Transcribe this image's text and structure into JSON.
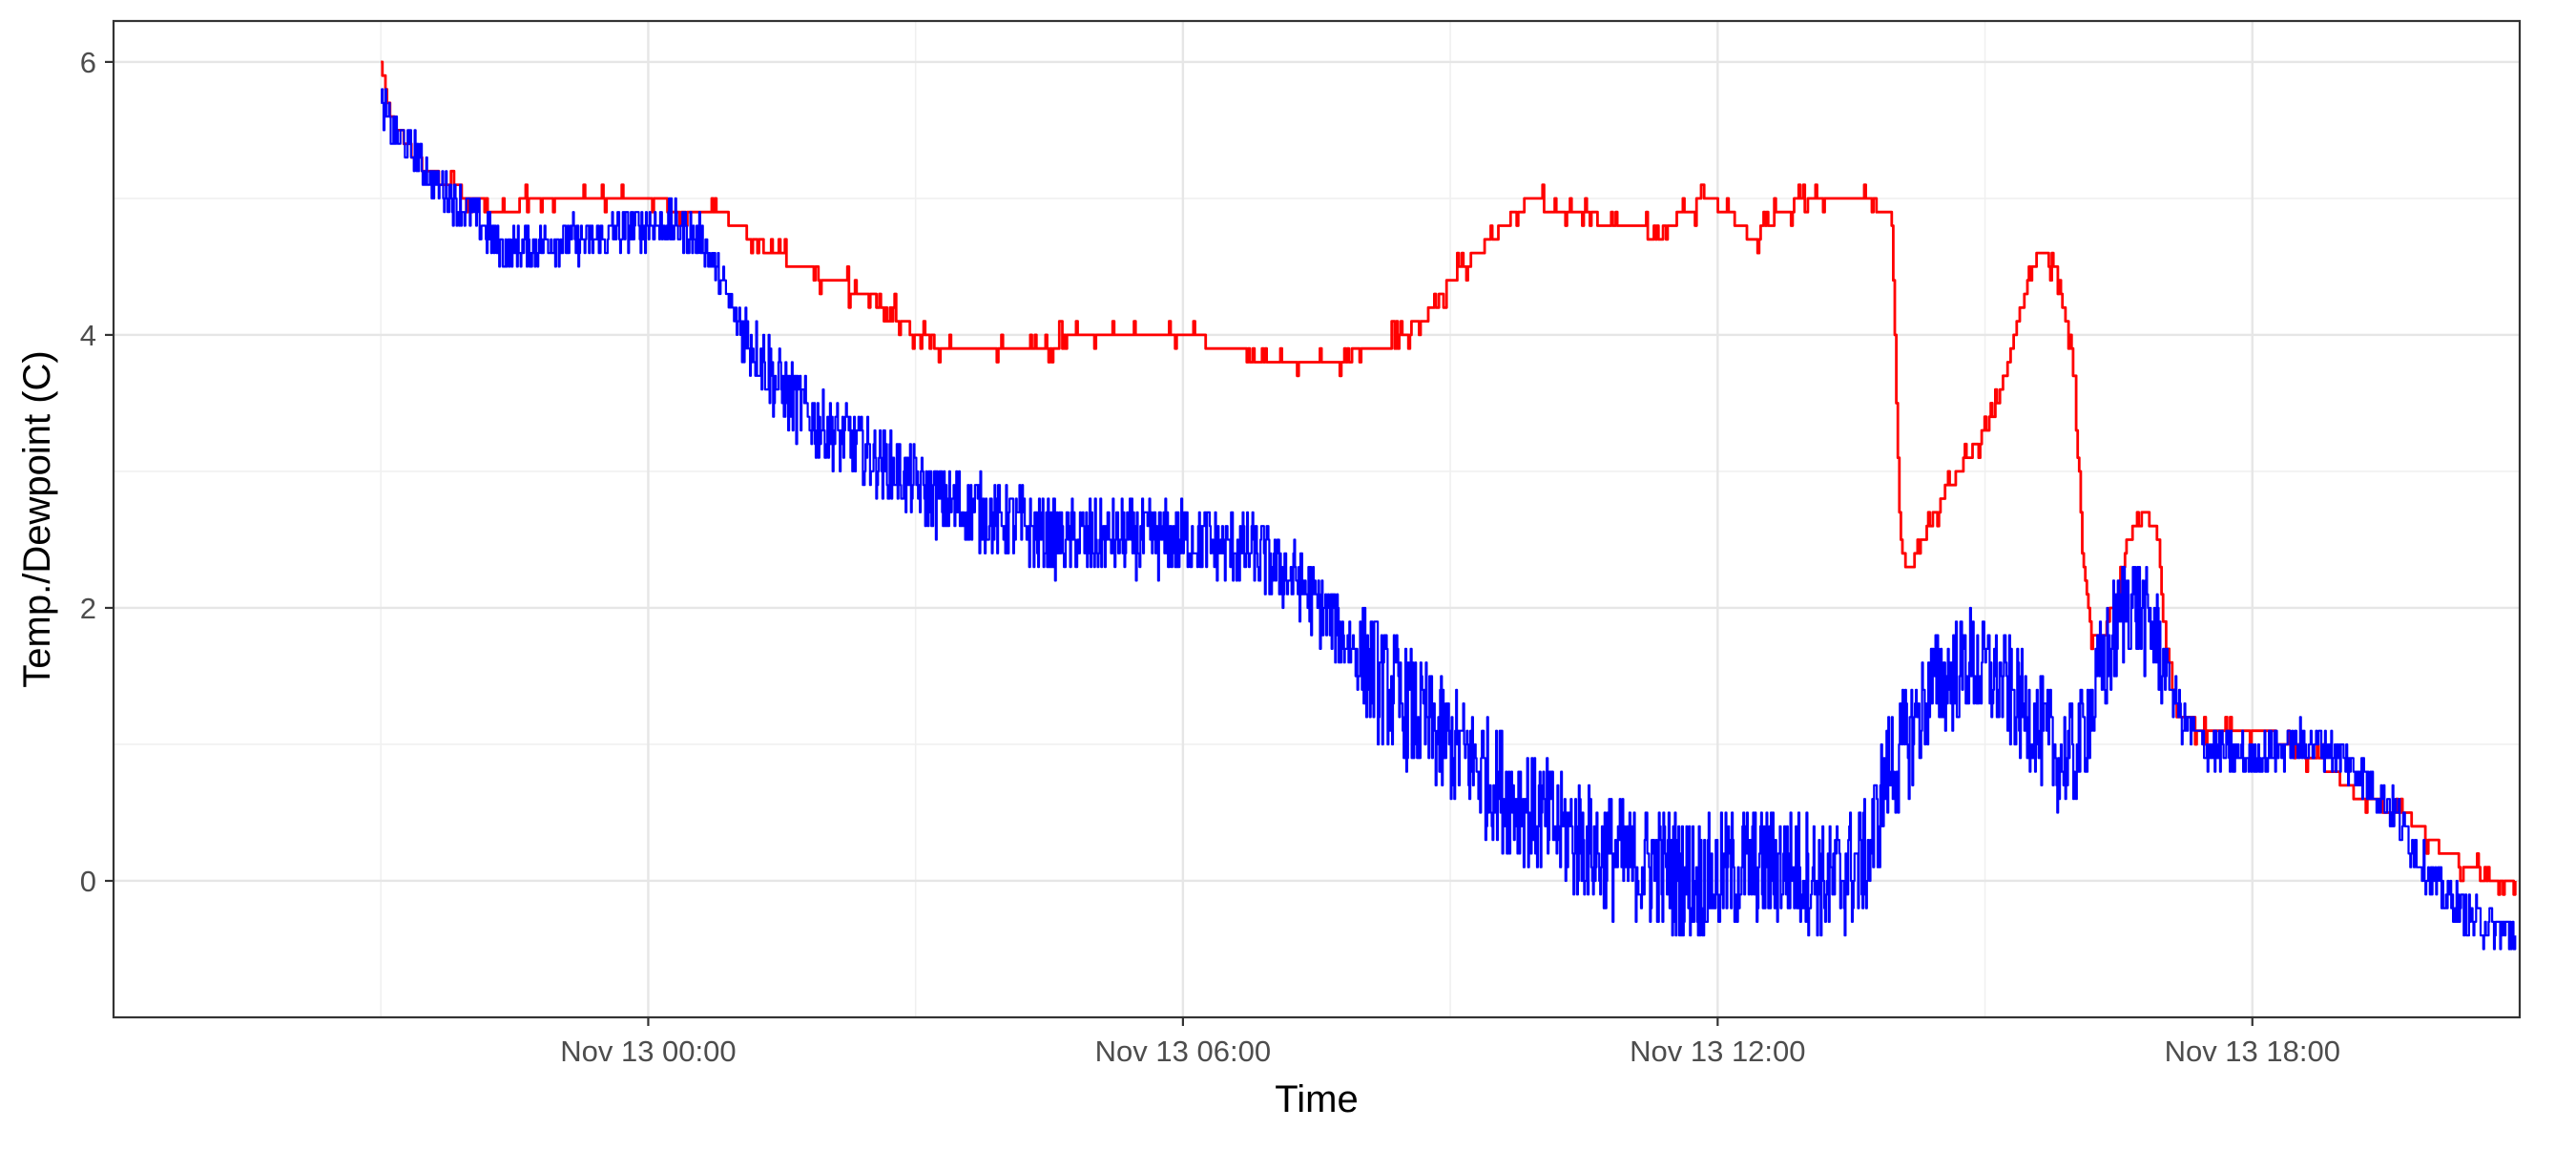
{
  "chart_data": {
    "type": "line",
    "title": "",
    "xlabel": "Time",
    "ylabel": "Temp./Dewpoint (C)",
    "x_unit": "hours relative to Nov 13 00:00",
    "xlim": [
      -6,
      21
    ],
    "ylim": [
      -1,
      6.3
    ],
    "x_ticks": [
      {
        "value": 0,
        "label": "Nov 13 00:00"
      },
      {
        "value": 6,
        "label": "Nov 13 06:00"
      },
      {
        "value": 12,
        "label": "Nov 13 12:00"
      },
      {
        "value": 18,
        "label": "Nov 13 18:00"
      }
    ],
    "x_minor_ticks": [
      -3,
      3,
      9,
      15
    ],
    "y_ticks": [
      0,
      2,
      4,
      6
    ],
    "y_minor_ticks": [
      -1,
      1,
      3,
      5
    ],
    "grid": true,
    "legend": "none",
    "series": [
      {
        "color": "#ff0000",
        "x": [
          -3.0,
          -2.9,
          -2.8,
          -2.6,
          -2.5,
          -2.2,
          -2.0,
          -1.7,
          -1.2,
          -0.9,
          -0.6,
          0.0,
          0.4,
          0.8,
          1.2,
          1.4,
          1.7,
          2.1,
          2.7,
          3.0,
          3.2,
          3.6,
          4.2,
          5.0,
          5.5,
          6.0,
          7.0,
          7.6,
          8.2,
          8.7,
          9.0,
          9.3,
          9.6,
          9.9,
          10.2,
          10.5,
          10.8,
          11.1,
          11.3,
          11.6,
          11.9,
          12.1,
          12.4,
          12.7,
          13.0,
          13.3,
          13.6,
          13.95,
          14.05,
          14.15,
          14.3,
          14.5,
          14.7,
          15.0,
          15.2,
          15.4,
          15.6,
          15.8,
          16.0,
          16.1,
          16.2,
          16.3,
          16.5,
          16.6,
          16.8,
          16.95,
          17.0,
          17.1,
          17.2,
          17.5,
          18.0,
          18.5,
          18.9,
          19.2,
          19.7,
          20.0,
          20.4,
          20.7,
          20.95
        ],
        "y": [
          6.0,
          5.6,
          5.5,
          5.3,
          5.2,
          5.1,
          5.0,
          4.9,
          5.0,
          5.0,
          5.0,
          5.0,
          4.9,
          4.9,
          4.7,
          4.6,
          4.5,
          4.4,
          4.2,
          4.0,
          3.95,
          3.9,
          3.9,
          4.0,
          4.0,
          4.0,
          3.8,
          3.8,
          3.9,
          4.1,
          4.4,
          4.6,
          4.8,
          5.0,
          4.9,
          4.9,
          4.8,
          4.8,
          4.7,
          4.9,
          5.0,
          4.9,
          4.7,
          4.9,
          5.0,
          5.0,
          5.0,
          4.9,
          2.4,
          2.3,
          2.5,
          2.8,
          3.0,
          3.3,
          3.6,
          4.2,
          4.6,
          4.5,
          3.7,
          2.3,
          1.8,
          1.75,
          2.1,
          2.5,
          2.7,
          2.5,
          1.9,
          1.4,
          1.2,
          1.1,
          1.1,
          1.0,
          0.8,
          0.6,
          0.5,
          0.3,
          0.1,
          0.0,
          0.0
        ]
      },
      {
        "color": "#0000ff",
        "noise": 0.45,
        "x": [
          -3.0,
          -2.9,
          -2.6,
          -2.4,
          -2.0,
          -1.6,
          -1.0,
          -0.6,
          -0.2,
          0.3,
          0.6,
          1.0,
          1.5,
          1.8,
          2.3,
          2.8,
          3.2,
          3.7,
          4.2,
          4.6,
          5.2,
          5.7,
          6.2,
          6.8,
          7.3,
          7.8,
          8.3,
          8.8,
          9.2,
          9.7,
          10.2,
          10.7,
          11.3,
          11.8,
          12.3,
          12.8,
          13.3,
          13.7,
          13.9,
          14.1,
          14.4,
          14.8,
          15.1,
          15.5,
          15.8,
          16.0,
          16.2,
          16.4,
          16.6,
          16.9,
          17.2,
          17.5,
          18.0,
          18.4,
          18.8,
          19.2,
          19.6,
          20.0,
          20.5,
          20.95
        ],
        "y": [
          5.7,
          5.5,
          5.3,
          5.1,
          4.9,
          4.6,
          4.7,
          4.7,
          4.8,
          4.8,
          4.7,
          4.1,
          3.6,
          3.4,
          3.2,
          3.0,
          2.8,
          2.7,
          2.6,
          2.5,
          2.5,
          2.5,
          2.5,
          2.4,
          2.2,
          1.8,
          1.4,
          1.1,
          0.9,
          0.6,
          0.4,
          0.2,
          0.1,
          0.0,
          0.1,
          0.1,
          0.0,
          0.2,
          0.8,
          1.0,
          1.4,
          1.6,
          1.5,
          1.2,
          0.9,
          0.9,
          1.3,
          1.7,
          2.1,
          1.8,
          1.2,
          0.95,
          0.9,
          1.0,
          1.0,
          0.8,
          0.5,
          0.0,
          -0.3,
          -0.4
        ]
      }
    ]
  }
}
